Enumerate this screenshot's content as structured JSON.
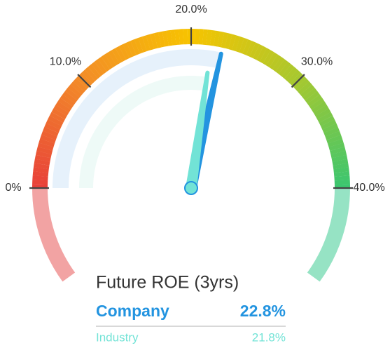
{
  "chart_data": {
    "type": "gauge",
    "title": "Future ROE (3yrs)",
    "xlim": [
      0,
      40
    ],
    "xticks": [
      {
        "value": 0,
        "label": "0%"
      },
      {
        "value": 10,
        "label": "10.0%"
      },
      {
        "value": 20,
        "label": "20.0%"
      },
      {
        "value": 30,
        "label": "30.0%"
      },
      {
        "value": 40,
        "label": "40.0%"
      }
    ],
    "series": [
      {
        "name": "Company",
        "color": "#2394e0",
        "values": [
          22.8
        ],
        "value_labels": [
          "22.8%"
        ]
      },
      {
        "name": "Industry",
        "color": "#72e3d6",
        "values": [
          21.8
        ],
        "value_labels": [
          "21.8%"
        ]
      }
    ]
  }
}
